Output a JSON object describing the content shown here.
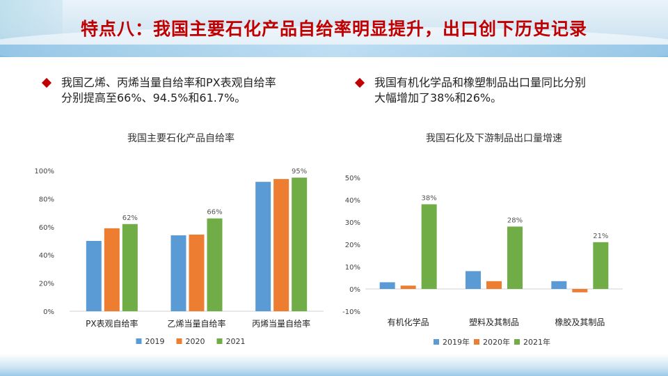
{
  "title": "特点八：我国主要石化产品自给率明显提升，出口创下历史记录",
  "bullets": [
    {
      "line1": "我国乙烯、丙烯当量自给率和PX表观自给率",
      "line2": "分别提高至66%、94.5%和61.7%。"
    },
    {
      "line1": "我国有机化学品和橡塑制品出口量同比分别",
      "line2": "大幅增加了38%和26%。"
    }
  ],
  "colors": {
    "s2019": "#5b9bd5",
    "s2020": "#ed7d31",
    "s2021": "#70ad47",
    "accent": "#c00000"
  },
  "chart_data": [
    {
      "type": "bar",
      "title": "我国主要石化产品自给率",
      "categories": [
        "PX表观自给率",
        "乙烯当量自给率",
        "丙烯当量自给率"
      ],
      "series": [
        {
          "name": "2019",
          "values": [
            50,
            54,
            92
          ]
        },
        {
          "name": "2020",
          "values": [
            59,
            54.5,
            94
          ]
        },
        {
          "name": "2021",
          "values": [
            62,
            66,
            95
          ]
        }
      ],
      "data_labels": {
        "series": "2021",
        "labels": [
          "62%",
          "66%",
          "95%"
        ]
      },
      "ylim": [
        0,
        100
      ],
      "yticks": [
        0,
        20,
        40,
        60,
        80,
        100
      ],
      "ytick_labels": [
        "0%",
        "20%",
        "40%",
        "60%",
        "80%",
        "100%"
      ],
      "legend": "bottom"
    },
    {
      "type": "bar",
      "title": "我国石化及下游制品出口量增速",
      "categories": [
        "有机化学品",
        "塑料及其制品",
        "橡胶及其制品"
      ],
      "series": [
        {
          "name": "2019年",
          "values": [
            3,
            8,
            3.5
          ]
        },
        {
          "name": "2020年",
          "values": [
            1.5,
            3.5,
            -1.5
          ]
        },
        {
          "name": "2021年",
          "values": [
            38,
            28,
            21
          ]
        }
      ],
      "data_labels": {
        "series": "2021年",
        "labels": [
          "38%",
          "28%",
          "21%"
        ]
      },
      "ylim": [
        -10,
        50
      ],
      "yticks": [
        -10,
        0,
        10,
        20,
        30,
        40,
        50
      ],
      "ytick_labels": [
        "-10%",
        "0%",
        "10%",
        "20%",
        "30%",
        "40%",
        "50%"
      ],
      "legend": "bottom"
    }
  ]
}
